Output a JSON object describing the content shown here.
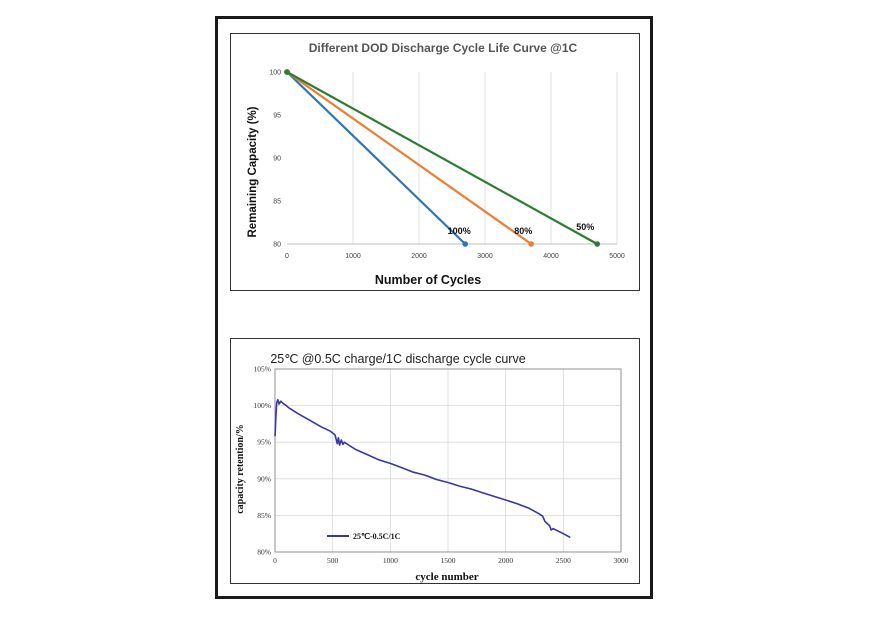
{
  "colors": {
    "frame": "#1a1a1a",
    "grid": "#d9d9d9",
    "s100": "#2e75b6",
    "s80": "#ed7d31",
    "s50": "#2e7d32",
    "curve": "#3636a8"
  },
  "chart_data": [
    {
      "type": "line",
      "title": "Different DOD Discharge Cycle Life Curve @1C",
      "xlabel": "Number of Cycles",
      "ylabel": "Remaining Capacity (%)",
      "xlim": [
        0,
        5000
      ],
      "ylim": [
        80,
        100
      ],
      "x_ticks": [
        "0",
        "1000",
        "2000",
        "3000",
        "4000",
        "5000"
      ],
      "y_ticks": [
        "80",
        "85",
        "90",
        "95",
        "100"
      ],
      "grid": "vertical",
      "series": [
        {
          "name": "100%",
          "color": "#2e75b6",
          "points": [
            [
              0,
              100
            ],
            [
              2700,
              80
            ]
          ]
        },
        {
          "name": "80%",
          "color": "#ed7d31",
          "points": [
            [
              0,
              100
            ],
            [
              3700,
              80
            ]
          ]
        },
        {
          "name": "50%",
          "color": "#2e7d32",
          "points": [
            [
              0,
              100
            ],
            [
              4700,
              80
            ]
          ]
        }
      ]
    },
    {
      "type": "line",
      "title": "25℃ @0.5C charge/1C discharge cycle curve",
      "xlabel": "cycle number",
      "ylabel": "capacity retention/%",
      "xlim": [
        0,
        3000
      ],
      "ylim": [
        80,
        105
      ],
      "x_ticks": [
        "0",
        "500",
        "1000",
        "1500",
        "2000",
        "2500",
        "3000"
      ],
      "y_ticks": [
        "80%",
        "85%",
        "90%",
        "95%",
        "100%",
        "105%"
      ],
      "grid": "both",
      "legend_position": "bottom-left",
      "series": [
        {
          "name": "25℃-0.5C/1C",
          "color": "#3636a8",
          "points": [
            [
              0,
              95.8
            ],
            [
              8,
              98.5
            ],
            [
              15,
              100.4
            ],
            [
              25,
              100.8
            ],
            [
              35,
              100.2
            ],
            [
              50,
              100.6
            ],
            [
              70,
              100.3
            ],
            [
              90,
              100.1
            ],
            [
              120,
              99.7
            ],
            [
              200,
              98.9
            ],
            [
              300,
              98.0
            ],
            [
              400,
              97.1
            ],
            [
              480,
              96.5
            ],
            [
              520,
              96.0
            ],
            [
              540,
              94.8
            ],
            [
              550,
              95.6
            ],
            [
              560,
              94.6
            ],
            [
              575,
              95.3
            ],
            [
              590,
              94.7
            ],
            [
              600,
              95.0
            ],
            [
              700,
              94.0
            ],
            [
              800,
              93.3
            ],
            [
              900,
              92.6
            ],
            [
              1000,
              92.1
            ],
            [
              1100,
              91.5
            ],
            [
              1200,
              90.9
            ],
            [
              1300,
              90.5
            ],
            [
              1400,
              89.9
            ],
            [
              1500,
              89.5
            ],
            [
              1600,
              89.0
            ],
            [
              1700,
              88.6
            ],
            [
              1800,
              88.1
            ],
            [
              1900,
              87.6
            ],
            [
              2000,
              87.1
            ],
            [
              2100,
              86.6
            ],
            [
              2200,
              86.0
            ],
            [
              2280,
              85.3
            ],
            [
              2320,
              84.9
            ],
            [
              2340,
              84.2
            ],
            [
              2360,
              83.9
            ],
            [
              2380,
              83.6
            ],
            [
              2395,
              83.0
            ],
            [
              2410,
              83.2
            ],
            [
              2450,
              82.9
            ],
            [
              2500,
              82.5
            ],
            [
              2560,
              82.0
            ]
          ]
        }
      ]
    }
  ]
}
